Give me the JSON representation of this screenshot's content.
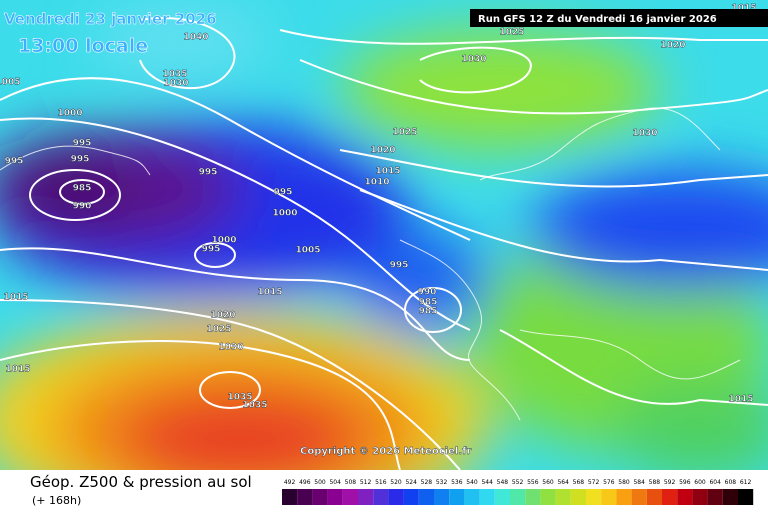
{
  "header": {
    "date": "Vendredi 23 janvier 2026",
    "time": "13:00 locale",
    "run": "Run GFS 12 Z du Vendredi 16 janvier 2026"
  },
  "isobar_labels": [
    "1040",
    "1035",
    "1030",
    "1005",
    "1000",
    "995",
    "995",
    "995",
    "985",
    "990",
    "995",
    "995",
    "1000",
    "1000",
    "995",
    "1005",
    "1015",
    "1015",
    "1020",
    "1025",
    "1030",
    "1015",
    "1035",
    "1035",
    "1030",
    "1025",
    "1020",
    "1015",
    "1025",
    "1020",
    "1015",
    "1010",
    "1030",
    "995",
    "990",
    "985",
    "985",
    "1015"
  ],
  "copyright": "Copyright © 2026 Meteociel.fr",
  "footer": {
    "title": "Géop. Z500 & pression au sol",
    "lead": "(+ 168h)"
  },
  "legend": {
    "values": [
      "492",
      "496",
      "500",
      "504",
      "508",
      "512",
      "516",
      "520",
      "524",
      "528",
      "532",
      "536",
      "540",
      "544",
      "548",
      "552",
      "556",
      "560",
      "564",
      "568",
      "572",
      "576",
      "580",
      "584",
      "588",
      "592",
      "596",
      "600",
      "604",
      "608",
      "612"
    ]
  }
}
